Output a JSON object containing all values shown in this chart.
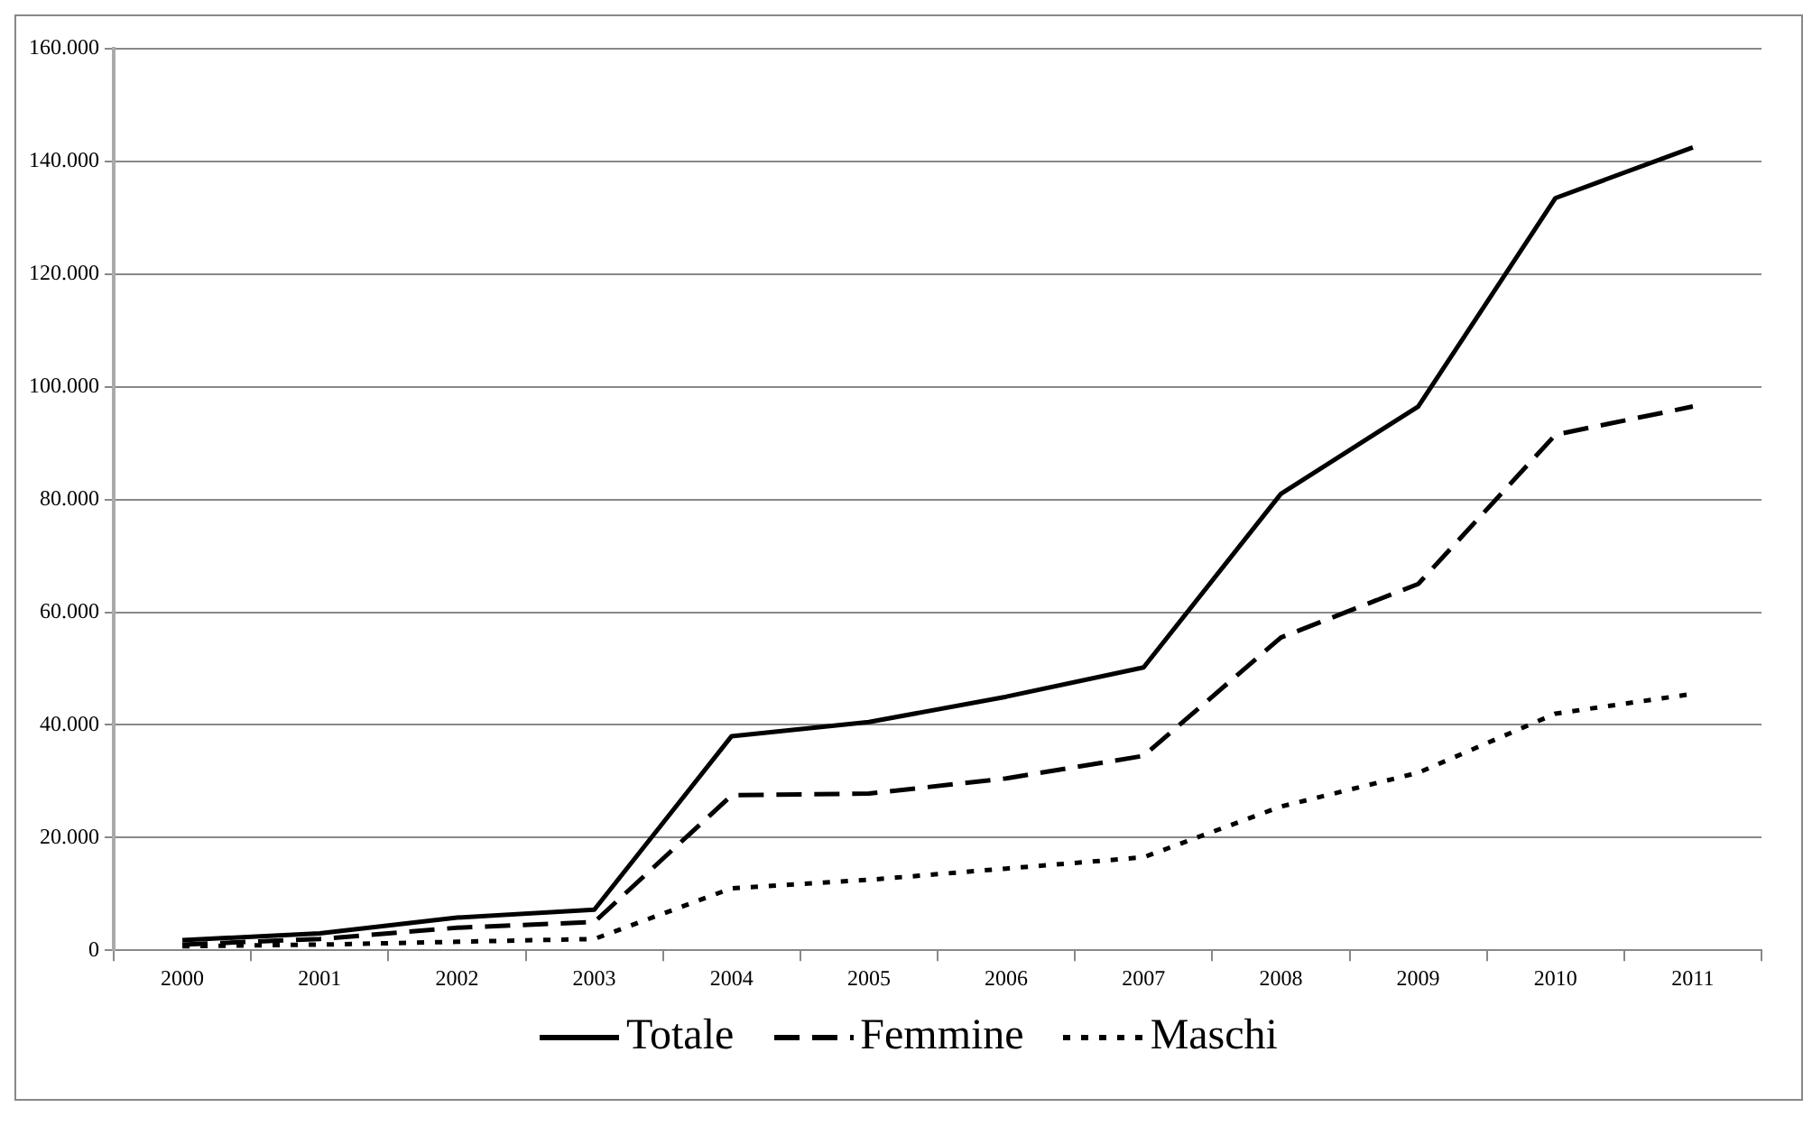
{
  "chart_data": {
    "type": "line",
    "categories": [
      "2000",
      "2001",
      "2002",
      "2003",
      "2004",
      "2005",
      "2006",
      "2007",
      "2008",
      "2009",
      "2010",
      "2011"
    ],
    "series": [
      {
        "name": "Totale",
        "color": "#000000",
        "line_style": "solid",
        "values": [
          1800,
          3000,
          5800,
          7200,
          38000,
          40500,
          45000,
          50200,
          81000,
          96500,
          133500,
          142500
        ]
      },
      {
        "name": "Femmine",
        "color": "#000000",
        "line_style": "dashed",
        "values": [
          1000,
          2000,
          4000,
          5000,
          27500,
          27800,
          30500,
          34500,
          55500,
          65000,
          91500,
          96500
        ]
      },
      {
        "name": "Maschi",
        "color": "#000000",
        "line_style": "dotted",
        "values": [
          700,
          1000,
          1500,
          2000,
          11000,
          12500,
          14500,
          16500,
          25500,
          31500,
          42000,
          45500
        ]
      }
    ],
    "ylim": [
      0,
      160000
    ],
    "yticks": [
      0,
      {
        "value": 20000,
        "label": "20.000"
      },
      {
        "value": 40000,
        "label": "40.000"
      },
      {
        "value": 60000,
        "label": "60.000"
      },
      {
        "value": 80000,
        "label": "80.000"
      },
      {
        "value": 100000,
        "label": "100.000"
      },
      {
        "value": 120000,
        "label": "120.000"
      },
      {
        "value": 140000,
        "label": "140.000"
      },
      {
        "value": 160000,
        "label": "160.000"
      }
    ],
    "grid": "y",
    "legend": "bottom",
    "marker": "none"
  }
}
